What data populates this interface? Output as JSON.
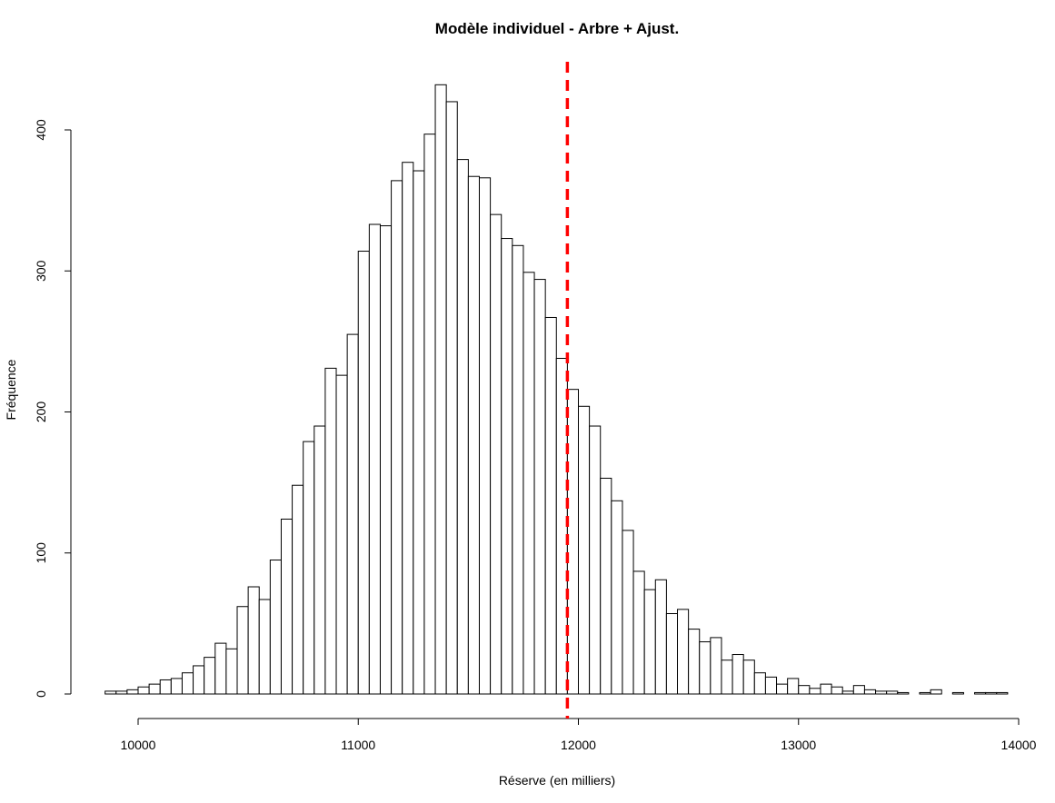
{
  "chart_data": {
    "type": "bar",
    "title": "Modèle individuel - Arbre + Ajust.",
    "xlabel": "Réserve (en milliers)",
    "ylabel": "Fréquence",
    "xlim": [
      9850,
      14000
    ],
    "ylim": [
      0,
      432
    ],
    "x_ticks": [
      10000,
      11000,
      12000,
      13000,
      14000
    ],
    "y_ticks": [
      0,
      100,
      200,
      300,
      400
    ],
    "bin_width": 50,
    "bin_start": 9850,
    "counts": [
      2,
      2,
      3,
      5,
      7,
      10,
      11,
      15,
      20,
      26,
      36,
      32,
      62,
      76,
      67,
      95,
      124,
      148,
      179,
      190,
      231,
      226,
      255,
      314,
      333,
      332,
      364,
      377,
      371,
      397,
      432,
      420,
      379,
      367,
      366,
      340,
      323,
      318,
      299,
      294,
      267,
      238,
      216,
      204,
      190,
      153,
      137,
      116,
      87,
      74,
      81,
      57,
      60,
      46,
      37,
      40,
      24,
      28,
      24,
      15,
      12,
      7,
      11,
      6,
      4,
      7,
      5,
      2,
      6,
      3,
      2,
      2,
      1,
      0,
      1,
      3,
      0,
      1,
      0,
      1,
      1,
      1
    ],
    "reference_line": {
      "x": 11950,
      "color": "#ff0000",
      "style": "dashed"
    },
    "grid": false,
    "legend": "none"
  }
}
